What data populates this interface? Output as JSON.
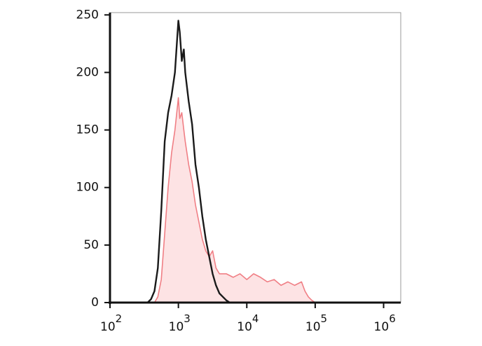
{
  "chart_data": {
    "type": "histogram-overlay",
    "xscale": "log",
    "xlim": [
      100,
      1780000
    ],
    "ylim": [
      0,
      252
    ],
    "xticks": [
      {
        "value": 100,
        "label": "10",
        "superscript": "2"
      },
      {
        "value": 1000,
        "label": "10",
        "superscript": "3"
      },
      {
        "value": 10000,
        "label": "10",
        "superscript": "4"
      },
      {
        "value": 100000,
        "label": "10",
        "superscript": "5"
      },
      {
        "value": 1000000,
        "label": "10",
        "superscript": "6"
      }
    ],
    "yticks": [
      0,
      50,
      100,
      150,
      200,
      250
    ],
    "series": [
      {
        "color": "#f07f85",
        "fill": "#fde3e4",
        "x": [
          447,
          501,
          562,
          631,
          708,
          794,
          891,
          1000,
          1047,
          1122,
          1202,
          1259,
          1413,
          1585,
          1778,
          1995,
          2239,
          2512,
          2818,
          3162,
          3548,
          3981,
          5012,
          6310,
          7943,
          10000,
          12589,
          15849,
          19953,
          25119,
          31623,
          39811,
          50119,
          63096,
          70795,
          79433,
          89125,
          100000
        ],
        "values": [
          0,
          5,
          20,
          60,
          100,
          130,
          150,
          178,
          160,
          165,
          150,
          140,
          120,
          105,
          85,
          70,
          55,
          45,
          40,
          45,
          30,
          25,
          25,
          22,
          25,
          20,
          25,
          22,
          18,
          20,
          15,
          18,
          15,
          18,
          10,
          5,
          2,
          0
        ]
      },
      {
        "color": "#1a1a1a",
        "fill": "none",
        "x": [
          355,
          398,
          447,
          501,
          562,
          631,
          708,
          794,
          891,
          1000,
          1047,
          1122,
          1202,
          1259,
          1413,
          1585,
          1778,
          1995,
          2239,
          2512,
          2818,
          3162,
          3548,
          3981,
          4467,
          5012,
          5623
        ],
        "values": [
          0,
          3,
          10,
          30,
          80,
          140,
          165,
          180,
          200,
          245,
          235,
          210,
          220,
          200,
          175,
          155,
          120,
          100,
          75,
          55,
          40,
          25,
          15,
          8,
          5,
          2,
          0
        ]
      }
    ]
  }
}
